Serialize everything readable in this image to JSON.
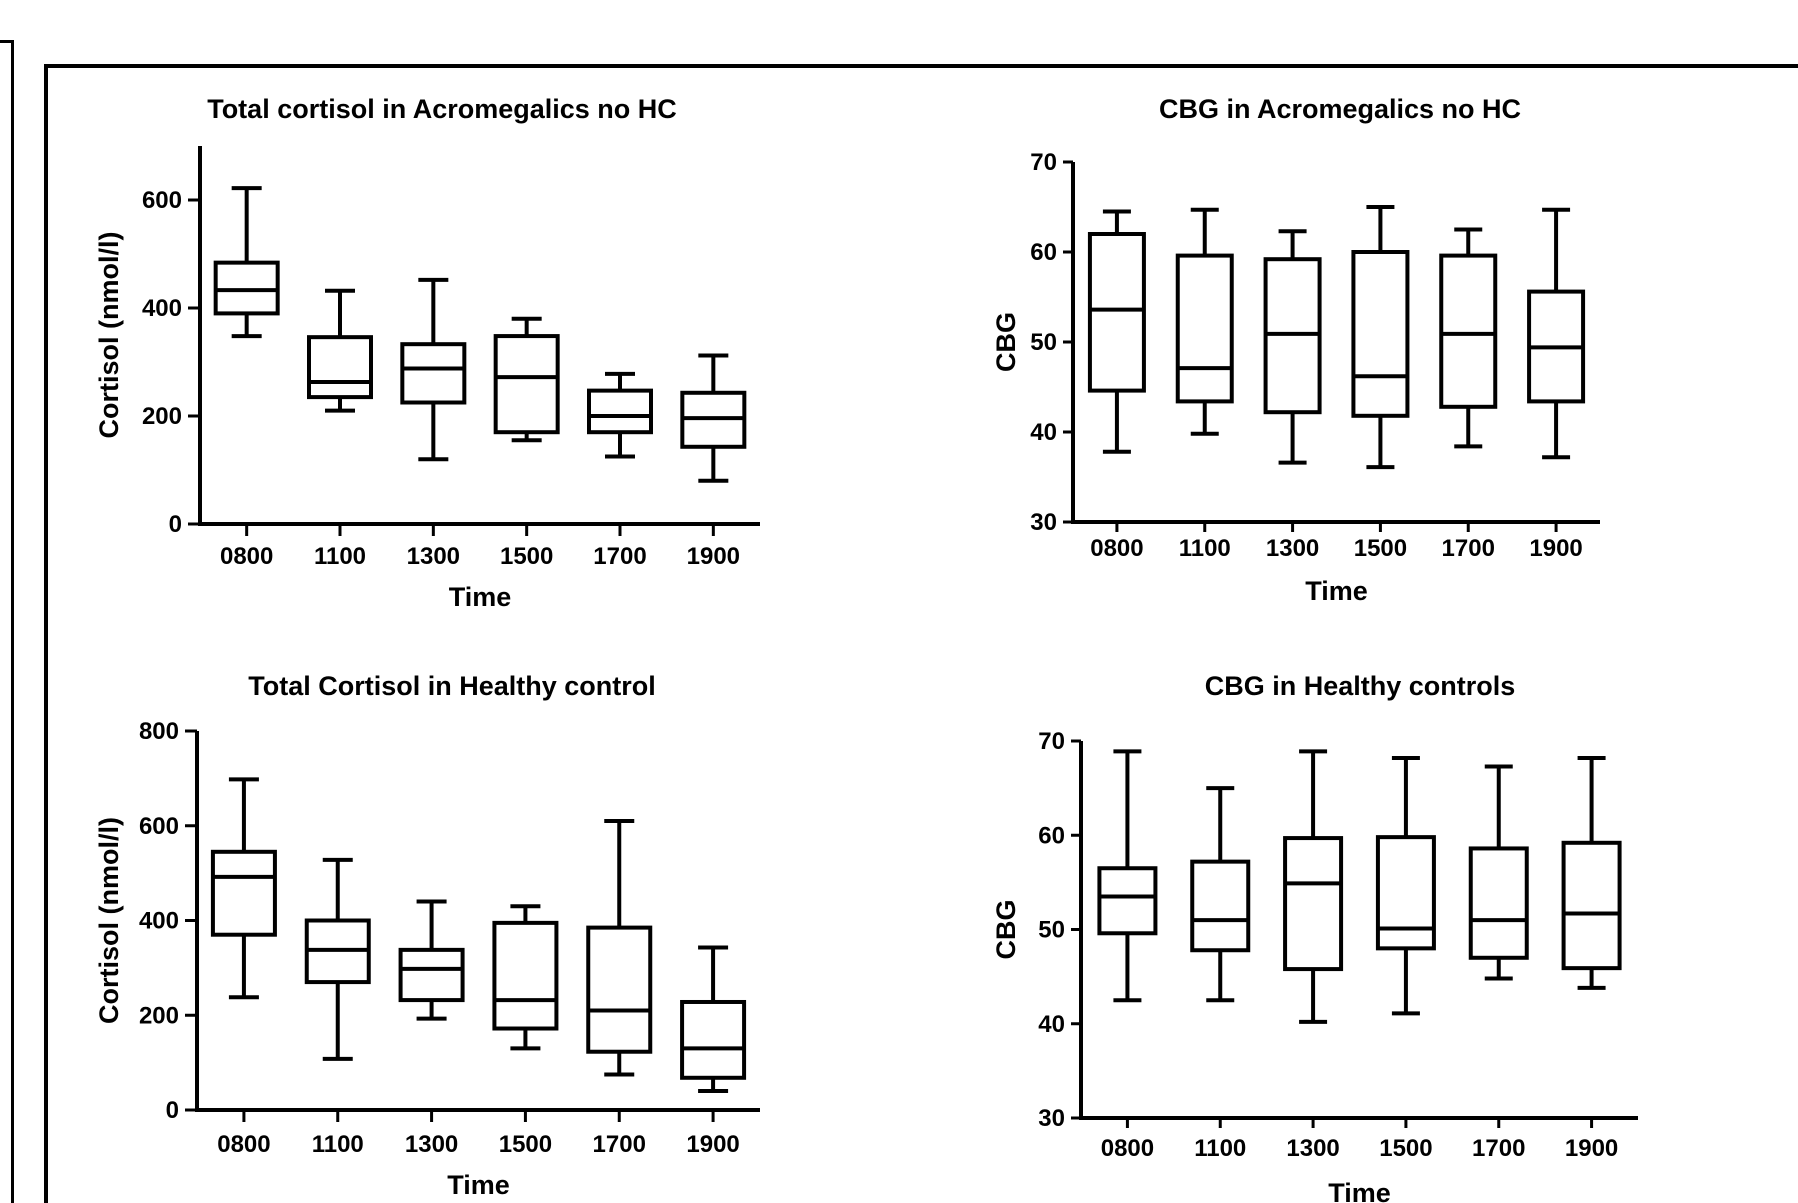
{
  "chart_data": [
    {
      "type": "box",
      "title": "Total cortisol in Acromegalics no HC",
      "xlabel": "Time",
      "ylabel": "Cortisol (nmol/l)",
      "ylim": [
        0,
        700
      ],
      "yticks": [
        0,
        200,
        400,
        600
      ],
      "categories": [
        "0800",
        "1100",
        "1300",
        "1500",
        "1700",
        "1900"
      ],
      "boxes": [
        {
          "min": 348,
          "q1": 390,
          "median": 433,
          "q3": 484,
          "max": 622
        },
        {
          "min": 210,
          "q1": 235,
          "median": 263,
          "q3": 346,
          "max": 432
        },
        {
          "min": 120,
          "q1": 225,
          "median": 288,
          "q3": 333,
          "max": 452
        },
        {
          "min": 155,
          "q1": 170,
          "median": 272,
          "q3": 348,
          "max": 380
        },
        {
          "min": 125,
          "q1": 170,
          "median": 200,
          "q3": 247,
          "max": 278
        },
        {
          "min": 80,
          "q1": 143,
          "median": 196,
          "q3": 243,
          "max": 312
        }
      ]
    },
    {
      "type": "box",
      "title": "CBG in Acromegalics no HC",
      "xlabel": "Time",
      "ylabel": "CBG",
      "ylim": [
        30,
        70
      ],
      "yticks": [
        30,
        40,
        50,
        60,
        70
      ],
      "categories": [
        "0800",
        "1100",
        "1300",
        "1500",
        "1700",
        "1900"
      ],
      "boxes": [
        {
          "min": 37.8,
          "q1": 44.6,
          "median": 53.6,
          "q3": 62.0,
          "max": 64.5
        },
        {
          "min": 39.8,
          "q1": 43.4,
          "median": 47.1,
          "q3": 59.6,
          "max": 64.7
        },
        {
          "min": 36.6,
          "q1": 42.2,
          "median": 50.9,
          "q3": 59.2,
          "max": 62.3
        },
        {
          "min": 36.1,
          "q1": 41.8,
          "median": 46.2,
          "q3": 60.0,
          "max": 65.0
        },
        {
          "min": 38.4,
          "q1": 42.8,
          "median": 50.9,
          "q3": 59.6,
          "max": 62.5
        },
        {
          "min": 37.2,
          "q1": 43.4,
          "median": 49.4,
          "q3": 55.6,
          "max": 64.7
        }
      ]
    },
    {
      "type": "box",
      "title": "Total Cortisol in Healthy control",
      "xlabel": "Time",
      "ylabel": "Cortisol (nmol/l)",
      "ylim": [
        0,
        800
      ],
      "yticks": [
        0,
        200,
        400,
        600,
        800
      ],
      "categories": [
        "0800",
        "1100",
        "1300",
        "1500",
        "1700",
        "1900"
      ],
      "boxes": [
        {
          "min": 238,
          "q1": 370,
          "median": 492,
          "q3": 545,
          "max": 698
        },
        {
          "min": 108,
          "q1": 270,
          "median": 338,
          "q3": 400,
          "max": 528
        },
        {
          "min": 193,
          "q1": 232,
          "median": 298,
          "q3": 338,
          "max": 440
        },
        {
          "min": 130,
          "q1": 172,
          "median": 232,
          "q3": 395,
          "max": 430
        },
        {
          "min": 75,
          "q1": 123,
          "median": 210,
          "q3": 385,
          "max": 610
        },
        {
          "min": 40,
          "q1": 68,
          "median": 130,
          "q3": 228,
          "max": 343
        }
      ]
    },
    {
      "type": "box",
      "title": "CBG in Healthy controls",
      "xlabel": "Time",
      "ylabel": "CBG",
      "ylim": [
        30,
        70
      ],
      "yticks": [
        30,
        40,
        50,
        60,
        70
      ],
      "categories": [
        "0800",
        "1100",
        "1300",
        "1500",
        "1700",
        "1900"
      ],
      "boxes": [
        {
          "min": 42.5,
          "q1": 49.6,
          "median": 53.5,
          "q3": 56.5,
          "max": 68.9
        },
        {
          "min": 42.5,
          "q1": 47.8,
          "median": 51.0,
          "q3": 57.2,
          "max": 65.0
        },
        {
          "min": 40.2,
          "q1": 45.8,
          "median": 54.9,
          "q3": 59.7,
          "max": 68.9
        },
        {
          "min": 41.1,
          "q1": 48.0,
          "median": 50.1,
          "q3": 59.8,
          "max": 68.2
        },
        {
          "min": 44.8,
          "q1": 47.0,
          "median": 51.0,
          "q3": 58.6,
          "max": 67.3
        },
        {
          "min": 43.8,
          "q1": 45.9,
          "median": 51.7,
          "q3": 59.2,
          "max": 68.2
        }
      ]
    }
  ]
}
